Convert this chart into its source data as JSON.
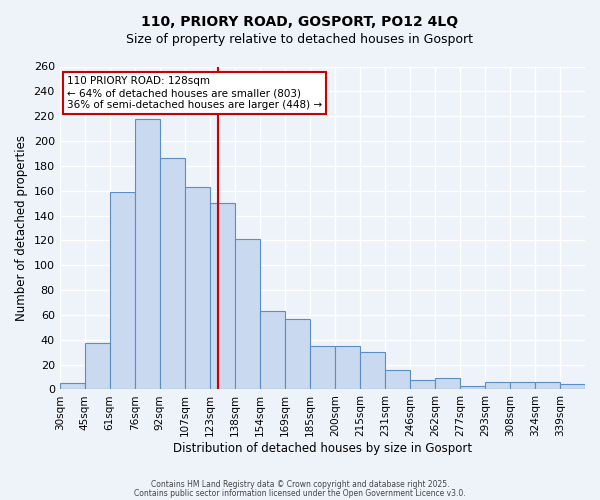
{
  "title_line1": "110, PRIORY ROAD, GOSPORT, PO12 4LQ",
  "title_line2": "Size of property relative to detached houses in Gosport",
  "xlabel": "Distribution of detached houses by size in Gosport",
  "ylabel": "Number of detached properties",
  "bar_labels": [
    "30sqm",
    "45sqm",
    "61sqm",
    "76sqm",
    "92sqm",
    "107sqm",
    "123sqm",
    "138sqm",
    "154sqm",
    "169sqm",
    "185sqm",
    "200sqm",
    "215sqm",
    "231sqm",
    "246sqm",
    "262sqm",
    "277sqm",
    "293sqm",
    "308sqm",
    "324sqm",
    "339sqm"
  ],
  "bar_values": [
    5,
    37,
    159,
    218,
    186,
    163,
    150,
    121,
    63,
    57,
    35,
    35,
    30,
    16,
    8,
    9,
    3,
    6,
    6,
    6,
    4
  ],
  "bar_color": "#c8d9f0",
  "bar_edge_color": "#5b8ec4",
  "bg_color": "#eef2f9",
  "grid_color": "#ffffff",
  "vline_color": "#cc0000",
  "annotation_title": "110 PRIORY ROAD: 128sqm",
  "annotation_line2": "← 64% of detached houses are smaller (803)",
  "annotation_line3": "36% of semi-detached houses are larger (448) →",
  "annotation_box_color": "#cc0000",
  "ylim": [
    0,
    260
  ],
  "yticks": [
    0,
    20,
    40,
    60,
    80,
    100,
    120,
    140,
    160,
    180,
    200,
    220,
    240,
    260
  ],
  "footnote1": "Contains HM Land Registry data © Crown copyright and database right 2025.",
  "footnote2": "Contains public sector information licensed under the Open Government Licence v3.0.",
  "bin_width": 15
}
